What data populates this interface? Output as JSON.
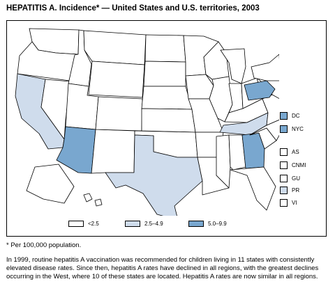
{
  "title": "HEPATITIS A. Incidence* — United States and U.S. territories, 2003",
  "colors": {
    "none": "#ffffff",
    "low": "#cfdcec",
    "high": "#79a7cf",
    "border": "#000000"
  },
  "state_classes": {
    "WA": "<2.5",
    "OR": "<2.5",
    "CA": "2.5–4.9",
    "NV": "<2.5",
    "ID": "<2.5",
    "MT": "<2.5",
    "WY": "<2.5",
    "UT": "<2.5",
    "AZ": "5.0–9.9",
    "NM": "<2.5",
    "CO": "<2.5",
    "ND": "<2.5",
    "SD": "<2.5",
    "NE": "<2.5",
    "KS": "<2.5",
    "OK": "<2.5",
    "TX": "2.5–4.9",
    "MN": "<2.5",
    "IA": "<2.5",
    "MO": "<2.5",
    "AR": "<2.5",
    "LA": "<2.5",
    "WI": "<2.5",
    "IL": "<2.5",
    "MI": "<2.5",
    "IN": "<2.5",
    "OH": "<2.5",
    "KY": "<2.5",
    "TN": "2.5–4.9",
    "MS": "<2.5",
    "AL": "<2.5",
    "GA": "5.0–9.9",
    "FL": "<2.5",
    "SC": "<2.5",
    "NC": "<2.5",
    "VA": "<2.5",
    "WV": "<2.5",
    "PA": "5.0–9.9",
    "NY": "<2.5",
    "ME": "<2.5",
    "AK": "<2.5",
    "HI": "<2.5"
  },
  "territories": [
    {
      "label": "DC",
      "class": "5.0–9.9"
    },
    {
      "label": "NYC",
      "class": "5.0–9.9"
    },
    {
      "label": "AS",
      "class": "<2.5"
    },
    {
      "label": "CNMI",
      "class": "<2.5"
    },
    {
      "label": "GU",
      "class": "<2.5"
    },
    {
      "label": "PR",
      "class": "2.5–4.9"
    },
    {
      "label": "VI",
      "class": "<2.5"
    }
  ],
  "legend": {
    "items": [
      "<2.5",
      "2.5–4.9",
      "5.0–9.9"
    ]
  },
  "footnote": "* Per 100,000 population.",
  "note": "In 1999, routine hepatitis A vaccination was recommended for children living in 11 states with consistently elevated disease rates. Since then, hepatitis A rates have declined in all regions, with the greatest declines occurring in the West, where 10 of these states are located. Hepatitis A rates are now similar in all regions."
}
